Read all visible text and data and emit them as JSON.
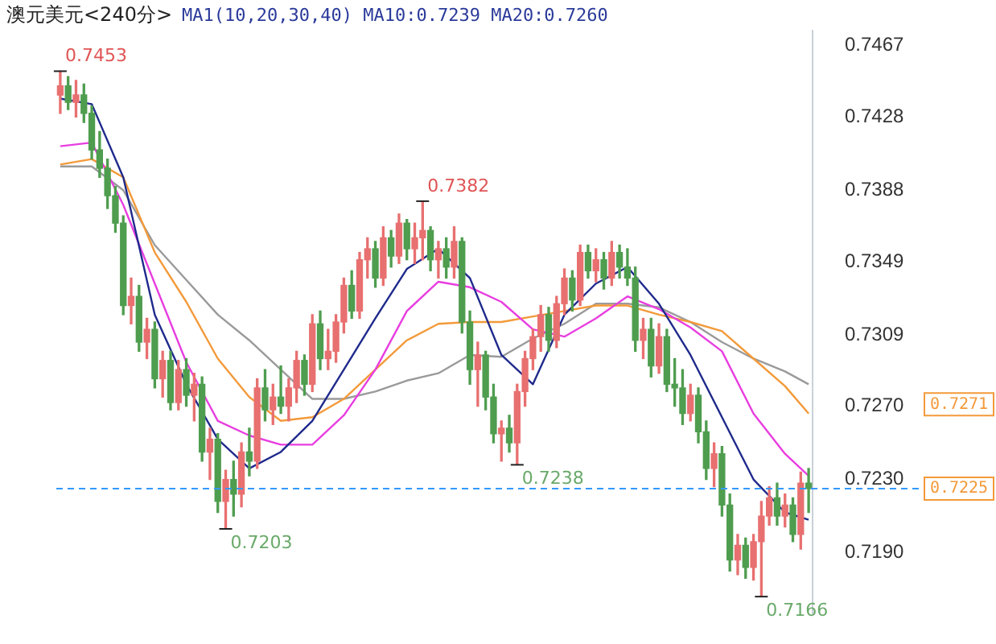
{
  "chart_data": {
    "type": "candlestick",
    "title": "澳元美元<240分>",
    "subtitle": "MA1(10,20,30,40)  MA10:0.7239  MA20:0.7260",
    "categories": [
      null,
      null,
      null,
      null,
      null,
      null,
      null,
      null,
      null,
      null,
      null,
      null,
      null,
      null,
      null,
      null,
      null,
      null,
      null,
      null,
      null,
      null,
      null,
      null,
      null,
      null,
      null,
      null,
      null,
      null,
      null,
      null,
      null,
      null,
      null,
      null,
      null,
      null,
      null,
      null,
      null,
      null,
      null,
      null,
      null,
      null,
      null,
      null,
      null,
      null,
      null,
      null,
      null,
      null,
      null,
      null,
      null,
      null,
      null,
      null,
      null,
      null,
      null,
      null,
      null,
      null,
      null,
      null,
      null,
      null,
      null,
      null,
      null,
      null,
      null,
      null,
      null,
      null,
      null,
      null,
      null,
      null,
      null,
      null,
      null,
      null,
      null,
      null,
      null,
      null,
      null,
      null,
      null,
      null,
      null,
      null
    ],
    "colors": [
      "#e87070",
      "#4f9d4f",
      "#e87070",
      "#4f9d4f",
      "#4f9d4f",
      "#4f9d4f",
      "#4f9d4f",
      "#4f9d4f",
      "#4f9d4f",
      "#e87070",
      "#4f9d4f",
      "#e87070",
      "#4f9d4f",
      "#e87070",
      "#4f9d4f",
      "#e87070",
      "#4f9d4f",
      "#e87070",
      "#4f9d4f",
      "#e87070",
      "#4f9d4f",
      "#e87070",
      "#4f9d4f",
      "#e87070",
      "#4f9d4f",
      "#e87070",
      "#4f9d4f",
      "#e87070",
      "#4f9d4f",
      "#e87070",
      "#e87070",
      "#4f9d4f",
      "#e87070",
      "#4f9d4f",
      "#e87070",
      "#e87070",
      "#e87070",
      "#4f9d4f",
      "#e87070",
      "#e87070",
      "#4f9d4f",
      "#e87070",
      "#4f9d4f",
      "#e87070",
      "#4f9d4f",
      "#e87070",
      "#e87070",
      "#4f9d4f",
      "#e87070",
      "#4f9d4f",
      "#e87070",
      "#4f9d4f",
      "#4f9d4f",
      "#e87070",
      "#4f9d4f",
      "#4f9d4f",
      "#e87070",
      "#4f9d4f",
      "#e87070",
      "#e87070",
      "#e87070",
      "#e87070",
      "#4f9d4f",
      "#e87070",
      "#e87070",
      "#4f9d4f",
      "#e87070",
      "#4f9d4f",
      "#e87070",
      "#4f9d4f",
      "#e87070",
      "#4f9d4f",
      "#4f9d4f",
      "#4f9d4f",
      "#e87070",
      "#4f9d4f",
      "#e87070",
      "#4f9d4f",
      "#4f9d4f",
      "#4f9d4f",
      "#e87070",
      "#4f9d4f",
      "#4f9d4f",
      "#e87070",
      "#4f9d4f",
      "#4f9d4f",
      "#e87070",
      "#4f9d4f",
      "#e87070",
      "#e87070",
      "#e87070",
      "#4f9d4f",
      "#e87070",
      "#4f9d4f",
      "#e87070",
      "#4f9d4f"
    ],
    "ohlc": [
      [
        0.744,
        0.7453,
        0.743,
        0.7445
      ],
      [
        0.7445,
        0.745,
        0.7432,
        0.7436
      ],
      [
        0.7436,
        0.7448,
        0.7428,
        0.744
      ],
      [
        0.744,
        0.7446,
        0.7425,
        0.743
      ],
      [
        0.743,
        0.7434,
        0.7405,
        0.741
      ],
      [
        0.741,
        0.742,
        0.7395,
        0.74
      ],
      [
        0.74,
        0.7405,
        0.7378,
        0.7385
      ],
      [
        0.7385,
        0.739,
        0.7365,
        0.737
      ],
      [
        0.737,
        0.7374,
        0.732,
        0.7325
      ],
      [
        0.7325,
        0.734,
        0.7315,
        0.733
      ],
      [
        0.733,
        0.7336,
        0.73,
        0.7305
      ],
      [
        0.7305,
        0.7318,
        0.7296,
        0.7312
      ],
      [
        0.7312,
        0.7316,
        0.728,
        0.7285
      ],
      [
        0.7285,
        0.73,
        0.7275,
        0.7295
      ],
      [
        0.7295,
        0.73,
        0.7268,
        0.7272
      ],
      [
        0.7272,
        0.7295,
        0.7268,
        0.729
      ],
      [
        0.729,
        0.7296,
        0.727,
        0.7276
      ],
      [
        0.7276,
        0.7288,
        0.7262,
        0.7282
      ],
      [
        0.7282,
        0.7286,
        0.724,
        0.7245
      ],
      [
        0.7245,
        0.7258,
        0.723,
        0.7252
      ],
      [
        0.7252,
        0.7255,
        0.7212,
        0.7218
      ],
      [
        0.7218,
        0.7235,
        0.7203,
        0.723
      ],
      [
        0.723,
        0.724,
        0.721,
        0.7222
      ],
      [
        0.7222,
        0.725,
        0.7215,
        0.7245
      ],
      [
        0.7245,
        0.7258,
        0.7232,
        0.724
      ],
      [
        0.724,
        0.7285,
        0.7236,
        0.728
      ],
      [
        0.728,
        0.729,
        0.7262,
        0.7268
      ],
      [
        0.7268,
        0.7282,
        0.726,
        0.7275
      ],
      [
        0.7275,
        0.7292,
        0.7266,
        0.727
      ],
      [
        0.727,
        0.7285,
        0.7262,
        0.728
      ],
      [
        0.728,
        0.73,
        0.7272,
        0.7295
      ],
      [
        0.7295,
        0.7298,
        0.7276,
        0.7282
      ],
      [
        0.7282,
        0.732,
        0.7278,
        0.7315
      ],
      [
        0.7315,
        0.7322,
        0.729,
        0.7296
      ],
      [
        0.7296,
        0.7312,
        0.729,
        0.73
      ],
      [
        0.73,
        0.732,
        0.7294,
        0.7316
      ],
      [
        0.7316,
        0.734,
        0.731,
        0.7336
      ],
      [
        0.7336,
        0.7344,
        0.7318,
        0.7322
      ],
      [
        0.7322,
        0.7354,
        0.7318,
        0.735
      ],
      [
        0.735,
        0.7362,
        0.734,
        0.7356
      ],
      [
        0.7356,
        0.736,
        0.7335,
        0.734
      ],
      [
        0.734,
        0.7368,
        0.7336,
        0.7362
      ],
      [
        0.7362,
        0.7366,
        0.7346,
        0.7352
      ],
      [
        0.7352,
        0.7375,
        0.7348,
        0.737
      ],
      [
        0.737,
        0.7372,
        0.735,
        0.7356
      ],
      [
        0.7356,
        0.737,
        0.7348,
        0.7362
      ],
      [
        0.7362,
        0.7382,
        0.735,
        0.7366
      ],
      [
        0.7366,
        0.7368,
        0.7344,
        0.735
      ],
      [
        0.735,
        0.736,
        0.734,
        0.7356
      ],
      [
        0.7356,
        0.7362,
        0.734,
        0.7346
      ],
      [
        0.7346,
        0.7368,
        0.734,
        0.736
      ],
      [
        0.736,
        0.7362,
        0.731,
        0.7316
      ],
      [
        0.7316,
        0.7322,
        0.7282,
        0.729
      ],
      [
        0.729,
        0.7305,
        0.727,
        0.7298
      ],
      [
        0.7298,
        0.73,
        0.7268,
        0.7275
      ],
      [
        0.7275,
        0.7282,
        0.725,
        0.7255
      ],
      [
        0.7255,
        0.7262,
        0.724,
        0.7258
      ],
      [
        0.7258,
        0.7265,
        0.7245,
        0.725
      ],
      [
        0.725,
        0.7282,
        0.7238,
        0.7278
      ],
      [
        0.7278,
        0.73,
        0.727,
        0.7296
      ],
      [
        0.7296,
        0.7312,
        0.729,
        0.7308
      ],
      [
        0.7308,
        0.7325,
        0.73,
        0.732
      ],
      [
        0.732,
        0.7324,
        0.73,
        0.7306
      ],
      [
        0.7306,
        0.733,
        0.7302,
        0.7326
      ],
      [
        0.7326,
        0.7345,
        0.732,
        0.734
      ],
      [
        0.734,
        0.7344,
        0.7322,
        0.7328
      ],
      [
        0.7328,
        0.7358,
        0.7325,
        0.7354
      ],
      [
        0.7354,
        0.7358,
        0.734,
        0.7344
      ],
      [
        0.7344,
        0.7356,
        0.7338,
        0.735
      ],
      [
        0.735,
        0.7354,
        0.7334,
        0.734
      ],
      [
        0.734,
        0.736,
        0.7336,
        0.7354
      ],
      [
        0.7354,
        0.7358,
        0.734,
        0.7346
      ],
      [
        0.7346,
        0.7356,
        0.7336,
        0.734
      ],
      [
        0.734,
        0.7346,
        0.73,
        0.7306
      ],
      [
        0.7306,
        0.7318,
        0.7296,
        0.7312
      ],
      [
        0.7312,
        0.7318,
        0.7286,
        0.7292
      ],
      [
        0.7292,
        0.7315,
        0.7288,
        0.7308
      ],
      [
        0.7308,
        0.7312,
        0.7278,
        0.7282
      ],
      [
        0.7282,
        0.7296,
        0.727,
        0.728
      ],
      [
        0.728,
        0.729,
        0.726,
        0.7266
      ],
      [
        0.7266,
        0.7282,
        0.7262,
        0.7276
      ],
      [
        0.7276,
        0.728,
        0.725,
        0.7256
      ],
      [
        0.7256,
        0.7262,
        0.723,
        0.7236
      ],
      [
        0.7236,
        0.725,
        0.7226,
        0.7244
      ],
      [
        0.7244,
        0.7248,
        0.721,
        0.7216
      ],
      [
        0.7216,
        0.7222,
        0.718,
        0.7186
      ],
      [
        0.7186,
        0.72,
        0.7178,
        0.7194
      ],
      [
        0.7194,
        0.7198,
        0.7176,
        0.7182
      ],
      [
        0.7182,
        0.72,
        0.7175,
        0.7196
      ],
      [
        0.7196,
        0.7218,
        0.7166,
        0.721
      ],
      [
        0.721,
        0.7226,
        0.7205,
        0.722
      ],
      [
        0.722,
        0.7228,
        0.7205,
        0.721
      ],
      [
        0.721,
        0.7222,
        0.7204,
        0.7216
      ],
      [
        0.7216,
        0.722,
        0.7196,
        0.72
      ],
      [
        0.72,
        0.7234,
        0.7192,
        0.7228
      ],
      [
        0.7228,
        0.7236,
        0.7212,
        0.7225
      ]
    ],
    "series": [
      {
        "type": "line",
        "color": "#1f2a8c",
        "values": [
          0.7438,
          null,
          null,
          null,
          0.7435,
          null,
          null,
          null,
          0.7395,
          null,
          null,
          null,
          0.732,
          null,
          null,
          null,
          0.7282,
          null,
          null,
          null,
          0.7252,
          null,
          null,
          null,
          0.7236,
          null,
          null,
          null,
          0.7245,
          null,
          null,
          null,
          0.7262,
          null,
          null,
          null,
          0.729,
          null,
          null,
          null,
          0.7318,
          null,
          null,
          null,
          0.7345,
          null,
          null,
          null,
          0.7356,
          null,
          null,
          null,
          0.734,
          null,
          null,
          null,
          0.7298,
          null,
          null,
          null,
          0.7282,
          null,
          null,
          null,
          0.732,
          null,
          null,
          null,
          0.7337,
          null,
          null,
          null,
          0.7346,
          null,
          null,
          null,
          0.7326,
          null,
          null,
          null,
          0.7298,
          null,
          null,
          null,
          0.7264,
          null,
          null,
          null,
          0.723,
          null,
          null,
          null,
          0.7212,
          null,
          null,
          0.7208
        ]
      },
      {
        "type": "line",
        "color": "#e83ee0",
        "values": [
          0.7412,
          null,
          null,
          null,
          0.7414,
          null,
          null,
          null,
          0.738,
          null,
          null,
          null,
          0.7337,
          null,
          null,
          null,
          0.7294,
          null,
          null,
          null,
          0.7262,
          null,
          null,
          null,
          0.7254,
          null,
          null,
          null,
          0.7249,
          null,
          null,
          null,
          0.7249,
          null,
          null,
          null,
          0.7265,
          null,
          null,
          null,
          0.729,
          null,
          null,
          null,
          0.7322,
          null,
          null,
          null,
          0.7338,
          null,
          null,
          null,
          0.7335,
          null,
          null,
          null,
          0.7327,
          null,
          null,
          null,
          0.7312,
          null,
          null,
          null,
          0.7308,
          null,
          null,
          null,
          0.7318,
          null,
          null,
          null,
          0.733,
          null,
          null,
          null,
          0.7323,
          null,
          null,
          null,
          0.7313,
          null,
          null,
          null,
          0.73,
          null,
          null,
          null,
          0.7266,
          null,
          null,
          null,
          0.7244,
          null,
          null,
          0.7232
        ]
      },
      {
        "type": "line",
        "color": "#f39a3a",
        "values": [
          0.7402,
          null,
          null,
          null,
          0.7405,
          null,
          null,
          null,
          0.7395,
          null,
          null,
          null,
          0.7354,
          null,
          null,
          null,
          0.7327,
          null,
          null,
          null,
          0.7296,
          null,
          null,
          null,
          0.7275,
          null,
          null,
          null,
          0.7262,
          null,
          null,
          null,
          0.7264,
          null,
          null,
          null,
          0.7274,
          null,
          null,
          null,
          0.729,
          null,
          null,
          null,
          0.7306,
          null,
          null,
          null,
          0.7315,
          null,
          null,
          null,
          0.7316,
          null,
          null,
          null,
          0.7316,
          null,
          null,
          null,
          0.7319,
          null,
          null,
          null,
          0.7322,
          null,
          null,
          null,
          0.7325,
          null,
          null,
          null,
          0.7325,
          null,
          null,
          null,
          0.732,
          null,
          null,
          null,
          0.7316,
          null,
          null,
          null,
          0.7311,
          null,
          null,
          null,
          0.7296,
          null,
          null,
          null,
          0.7281,
          null,
          null,
          0.7266
        ]
      },
      {
        "type": "line",
        "color": "#9a9a9a",
        "values": [
          0.7401,
          null,
          null,
          null,
          0.7401,
          null,
          null,
          null,
          0.7388,
          null,
          null,
          null,
          0.7358,
          null,
          null,
          null,
          0.7339,
          null,
          null,
          null,
          0.732,
          null,
          null,
          null,
          0.7306,
          null,
          null,
          null,
          0.729,
          null,
          null,
          null,
          0.7274,
          null,
          null,
          null,
          0.7274,
          null,
          null,
          null,
          0.7278,
          null,
          null,
          null,
          0.7284,
          null,
          null,
          null,
          0.7288,
          null,
          null,
          null,
          0.7298,
          null,
          null,
          null,
          0.7297,
          null,
          null,
          null,
          0.7307,
          null,
          null,
          null,
          0.7315,
          null,
          null,
          null,
          0.7326,
          null,
          null,
          null,
          0.7326,
          null,
          null,
          null,
          0.7324,
          null,
          null,
          null,
          0.7316,
          null,
          null,
          null,
          0.7305,
          null,
          null,
          null,
          0.7296,
          null,
          null,
          null,
          0.7289,
          null,
          null,
          0.7282
        ]
      }
    ],
    "ylim": [
      0.7157,
      0.7475
    ],
    "yticks": [
      0.7467,
      0.7428,
      0.7388,
      0.7349,
      0.7309,
      {
        "value": 0.727,
        "label": "0.7270"
      },
      {
        "value": 0.723,
        "label": "0.7230"
      },
      {
        "value": 0.719,
        "label": "0.7190"
      }
    ],
    "ref_lines": [
      {
        "axis": "y",
        "value": 0.7225,
        "label": "0.7225",
        "color": "#3399ff",
        "line_style": "dashed"
      }
    ],
    "annotations": [
      "0.7453",
      "0.7203",
      "0.7382",
      "0.7238",
      "0.7166",
      "0.7271"
    ]
  }
}
